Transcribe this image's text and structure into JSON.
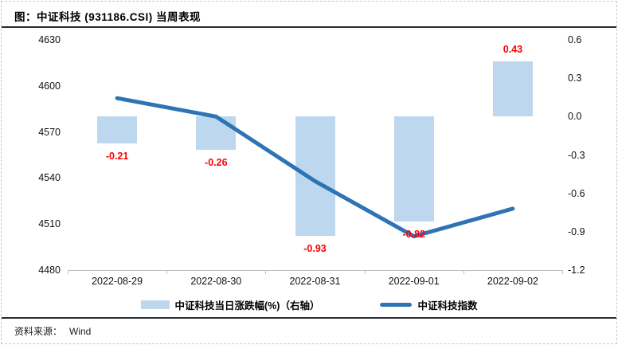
{
  "header": {
    "title": "图：中证科技 (931186.CSI) 当周表现"
  },
  "footer": {
    "source_label": "资料来源：",
    "source_value": "Wind"
  },
  "legend": {
    "bar_label": "中证科技当日涨跌幅(%)（右轴）",
    "line_label": "中证科技指数"
  },
  "colors": {
    "bar_fill": "#BDD7EE",
    "line_stroke": "#2E74B5",
    "data_label": "#FF0000",
    "axis_line": "#BFBFBF",
    "rule": "#272C34"
  },
  "chart_data": {
    "type": [
      "bar",
      "line"
    ],
    "title": "图：中证科技 (931186.CSI) 当周表现",
    "categories": [
      "2022-08-29",
      "2022-08-30",
      "2022-08-31",
      "2022-09-01",
      "2022-09-02"
    ],
    "series": [
      {
        "name": "中证科技当日涨跌幅(%)（右轴）",
        "type": "bar",
        "axis": "right",
        "values": [
          -0.21,
          -0.26,
          -0.93,
          -0.82,
          0.43
        ],
        "data_labels": [
          "-0.21",
          "-0.26",
          "-0.93",
          "-0.82",
          "0.43"
        ]
      },
      {
        "name": "中证科技指数",
        "type": "line",
        "axis": "left",
        "values": [
          4592,
          4580,
          4538,
          4502,
          4520
        ]
      }
    ],
    "left_axis": {
      "min": 4480,
      "max": 4630,
      "step": 30,
      "ticks": [
        "4630",
        "4600",
        "4570",
        "4540",
        "4510",
        "4480"
      ]
    },
    "right_axis": {
      "min": -1.2,
      "max": 0.6,
      "step": 0.3,
      "ticks": [
        "0.6",
        "0.3",
        "0.0",
        "-0.3",
        "-0.6",
        "-0.9",
        "-1.2"
      ]
    },
    "grid": false,
    "legend_position": "bottom"
  }
}
